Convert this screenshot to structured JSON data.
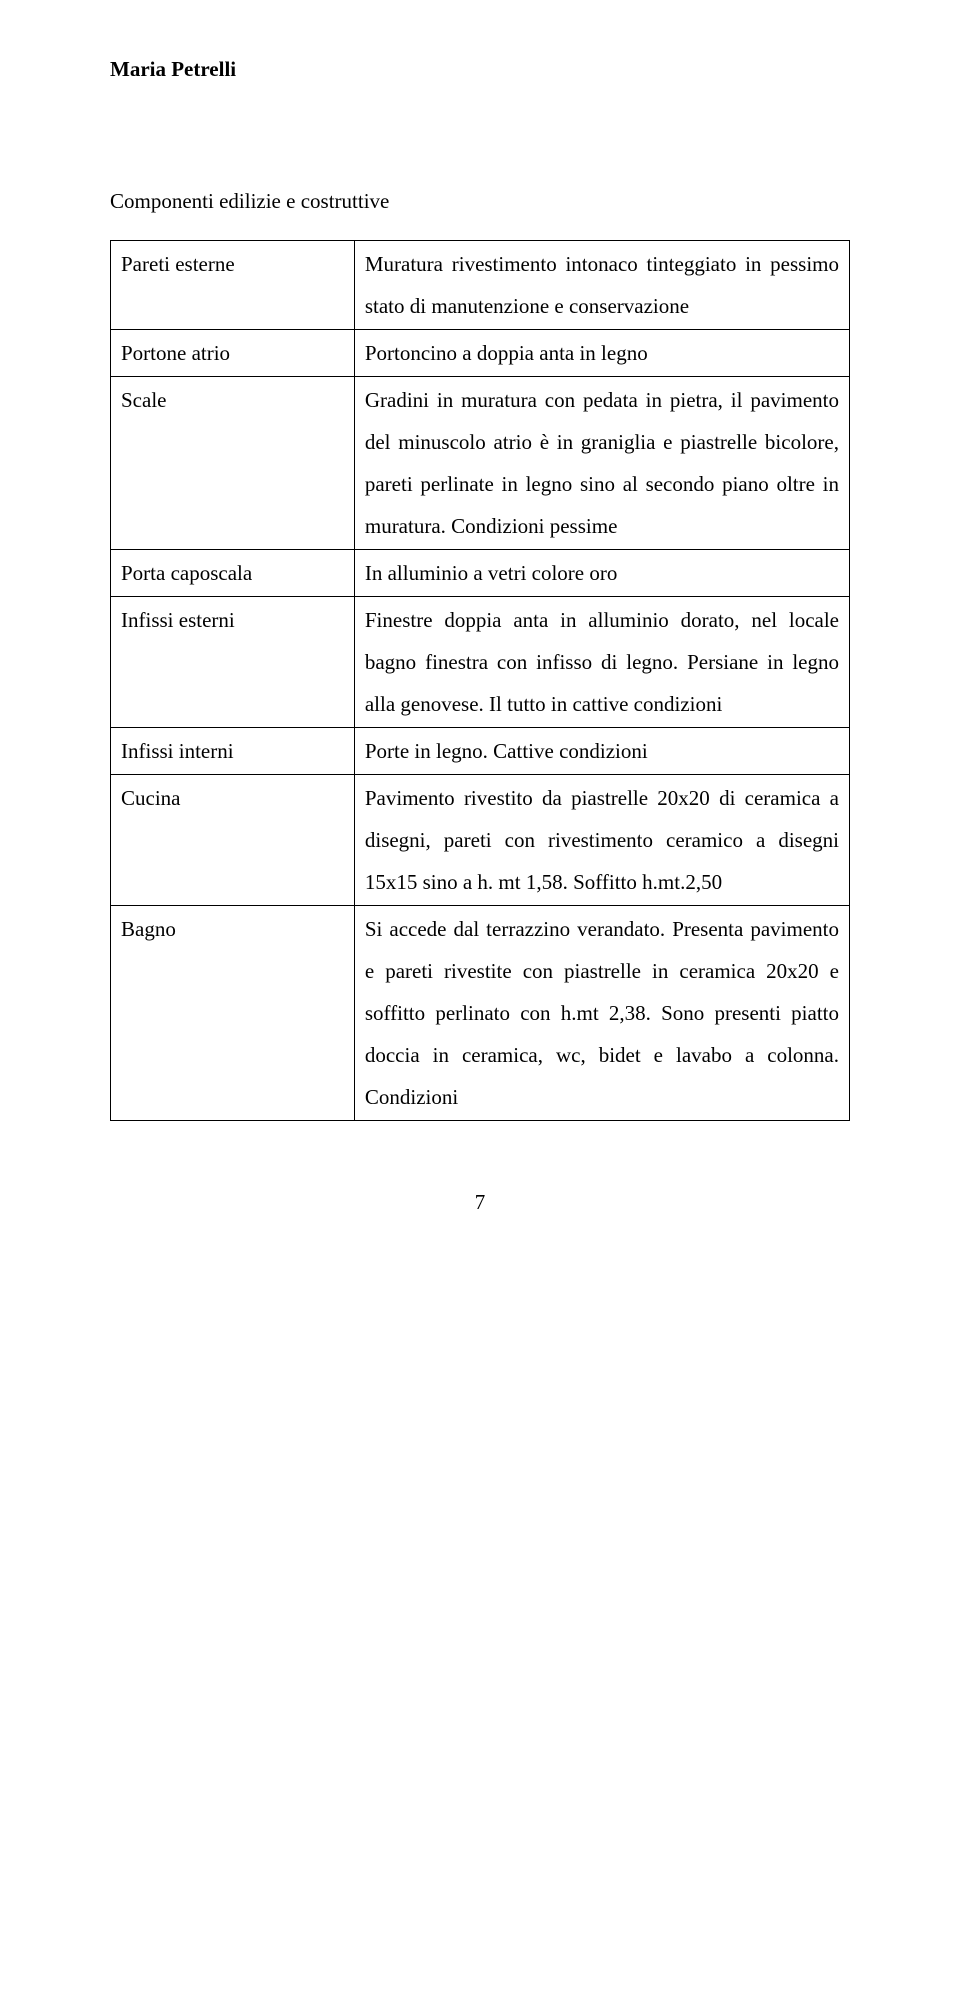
{
  "header": {
    "name": "Maria Petrelli"
  },
  "section_heading": "Componenti edilizie e costruttive",
  "rows": [
    {
      "label": "Pareti esterne",
      "desc": "Muratura rivestimento intonaco tinteggiato in pessimo stato di manutenzione e conservazione"
    },
    {
      "label": "Portone atrio",
      "desc": "Portoncino a  doppia anta  in legno"
    },
    {
      "label": "Scale",
      "desc": "Gradini in muratura con pedata in pietra, il pavimento del minuscolo atrio è in graniglia e piastrelle bicolore, pareti perlinate in legno sino al secondo piano oltre in muratura. Condizioni  pessime"
    },
    {
      "label": "Porta caposcala",
      "desc": "In alluminio a vetri colore oro"
    },
    {
      "label": "Infissi esterni",
      "desc": "Finestre doppia anta in alluminio dorato, nel locale bagno finestra con infisso di legno. Persiane in legno alla genovese. Il tutto in cattive condizioni"
    },
    {
      "label": "Infissi interni",
      "desc": "Porte in legno. Cattive condizioni"
    },
    {
      "label": "Cucina",
      "desc": "Pavimento rivestito da piastrelle  20x20 di ceramica a disegni, pareti con rivestimento ceramico  a disegni 15x15  sino a h. mt 1,58. Soffitto h.mt.2,50"
    },
    {
      "label": "Bagno",
      "desc": "Si accede dal terrazzino verandato. Presenta pavimento e pareti rivestite con piastrelle in ceramica 20x20 e soffitto perlinato con h.mt 2,38. Sono presenti piatto doccia in ceramica, wc, bidet e lavabo a colonna. Condizioni"
    }
  ],
  "page_number": "7"
}
